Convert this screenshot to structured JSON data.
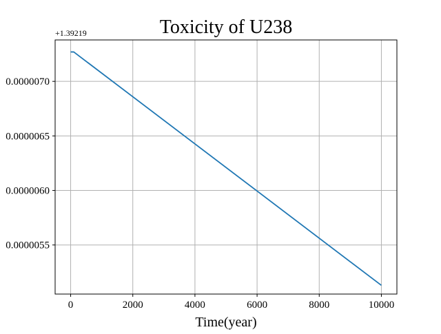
{
  "chart_data": {
    "type": "line",
    "title": "Toxicity of U238",
    "xlabel": "Time(year)",
    "ylabel": "",
    "y_offset_text": "+1.39219",
    "x_ticks": [
      0,
      2000,
      4000,
      6000,
      8000,
      10000
    ],
    "x_tick_labels": [
      "0",
      "2000",
      "4000",
      "6000",
      "8000",
      "10000"
    ],
    "y_ticks": [
      5.5e-06,
      6e-06,
      6.5e-06,
      7e-06
    ],
    "y_tick_labels": [
      "0.0000055",
      "0.0000060",
      "0.0000065",
      "0.0000070"
    ],
    "xlim": [
      -500,
      10500
    ],
    "ylim": [
      5.05e-06,
      7.38e-06
    ],
    "grid": true,
    "color": "#1f77b4",
    "series": [
      {
        "x": [
          0,
          100,
          10000
        ],
        "y": [
          7.27e-06,
          7.27e-06,
          5.13e-06
        ]
      }
    ]
  }
}
